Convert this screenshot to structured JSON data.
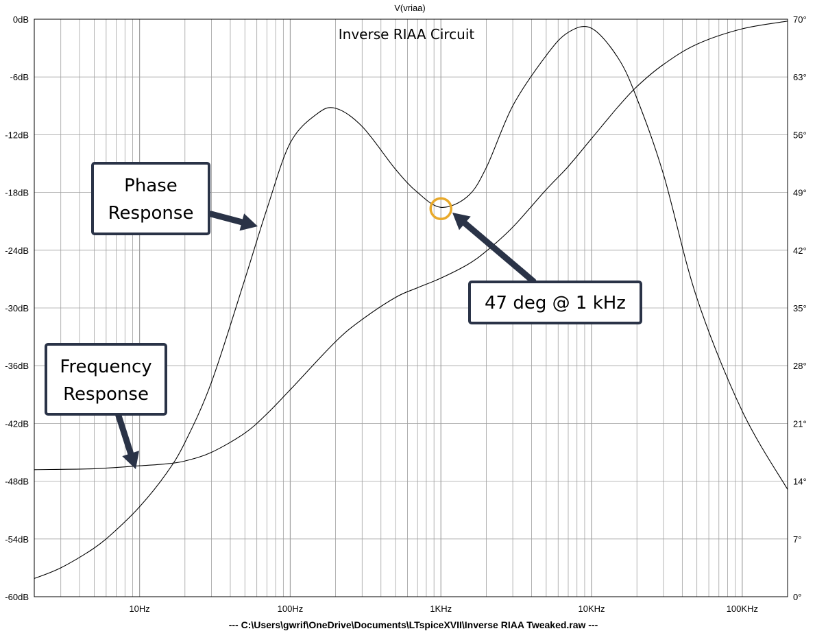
{
  "chart_data": {
    "type": "line",
    "signal_name": "V(vriaa)",
    "title": "Inverse RIAA Circuit",
    "file_path": "---  C:\\Users\\gwrif\\OneDrive\\Documents\\LTspiceXVII\\Inverse RIAA Tweaked.raw  ---",
    "x_axis": {
      "scale": "log",
      "range_hz": [
        2,
        200000
      ],
      "tick_labels": [
        "10Hz",
        "100Hz",
        "1KHz",
        "10KHz",
        "100KHz"
      ],
      "tick_values_hz": [
        10,
        100,
        1000,
        10000,
        100000
      ],
      "grid": true
    },
    "y_left": {
      "unit": "dB",
      "range": [
        -60,
        0
      ],
      "tick_labels": [
        "0dB",
        "-6dB",
        "-12dB",
        "-18dB",
        "-24dB",
        "-30dB",
        "-36dB",
        "-42dB",
        "-48dB",
        "-54dB",
        "-60dB"
      ],
      "tick_values": [
        0,
        -6,
        -12,
        -18,
        -24,
        -30,
        -36,
        -42,
        -48,
        -54,
        -60
      ]
    },
    "y_right": {
      "unit": "deg",
      "range": [
        0,
        70
      ],
      "tick_labels": [
        "70°",
        "63°",
        "56°",
        "49°",
        "42°",
        "35°",
        "28°",
        "21°",
        "14°",
        "7°",
        "0°"
      ],
      "tick_values": [
        70,
        63,
        56,
        49,
        42,
        35,
        28,
        21,
        14,
        7,
        0
      ]
    },
    "series": [
      {
        "name": "Frequency Response",
        "axis": "left",
        "x_hz": [
          2,
          5,
          10,
          15,
          20,
          30,
          50,
          70,
          100,
          200,
          300,
          500,
          700,
          1000,
          1500,
          2000,
          3000,
          5000,
          7000,
          10000,
          15000,
          20000,
          30000,
          50000,
          100000,
          200000
        ],
        "y_db": [
          -46.8,
          -46.7,
          -46.4,
          -46.2,
          -45.9,
          -45.0,
          -43.0,
          -41.0,
          -38.5,
          -33.5,
          -31.2,
          -28.9,
          -27.9,
          -26.9,
          -25.5,
          -24.1,
          -21.6,
          -17.7,
          -15.3,
          -12.4,
          -9.1,
          -7.0,
          -4.7,
          -2.6,
          -1.0,
          -0.2
        ]
      },
      {
        "name": "Phase Response",
        "axis": "right",
        "x_hz": [
          2,
          3,
          5,
          7,
          10,
          15,
          20,
          30,
          50,
          70,
          100,
          150,
          200,
          300,
          500,
          700,
          1000,
          1500,
          2000,
          3000,
          5000,
          7000,
          10000,
          15000,
          20000,
          30000,
          50000,
          100000,
          200000
        ],
        "y_deg": [
          2.2,
          3.5,
          5.9,
          8.1,
          10.9,
          14.9,
          18.7,
          26.0,
          38.5,
          47.0,
          55.0,
          58.5,
          59.2,
          57.0,
          51.8,
          49.0,
          47.2,
          48.5,
          52.0,
          59.5,
          65.6,
          68.4,
          68.9,
          65.3,
          60.4,
          51.2,
          36.2,
          22.5,
          13.0
        ]
      }
    ],
    "annotations": [
      {
        "id": "phase",
        "lines": [
          "Phase",
          "Response"
        ]
      },
      {
        "id": "freq",
        "lines": [
          "Frequency",
          "Response"
        ]
      },
      {
        "id": "marker",
        "lines": [
          "47 deg @ 1 kHz"
        ],
        "x_hz": 1000,
        "y_deg": 47.2
      }
    ],
    "colors": {
      "grid": "#a0a0a0",
      "trace": "#000000",
      "callout": "#2a3347",
      "marker": "#e8a92a"
    }
  }
}
